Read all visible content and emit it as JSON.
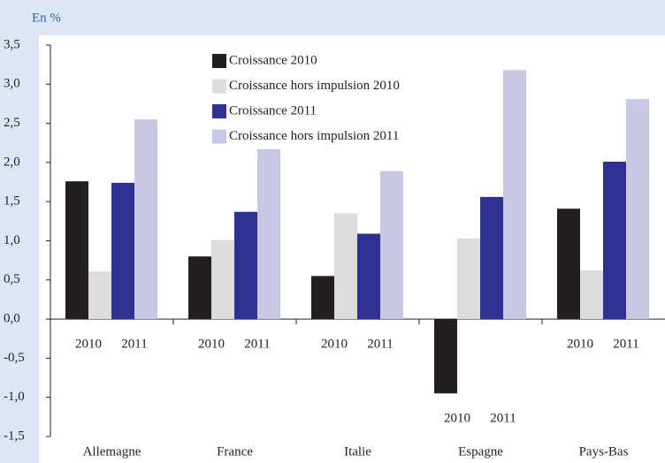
{
  "chart_data": {
    "type": "bar",
    "title": "En %",
    "categories": [
      "Allemagne",
      "France",
      "Italie",
      "Espagne",
      "Pays-Bas"
    ],
    "sub_categories": [
      "2010",
      "2011"
    ],
    "series": [
      {
        "name": "Croissance 2010",
        "color": "#231f20",
        "values": [
          1.76,
          0.8,
          0.55,
          -0.95,
          1.41
        ]
      },
      {
        "name": "Croissance hors impulsion 2010",
        "color": "#dcdcdc",
        "values": [
          0.61,
          1.01,
          1.35,
          1.03,
          0.62
        ]
      },
      {
        "name": "Croissance 2011",
        "color": "#2e3192",
        "values": [
          1.74,
          1.37,
          1.09,
          1.56,
          2.01
        ]
      },
      {
        "name": "Croissance hors impulsion 2011",
        "color": "#c9c8e4",
        "values": [
          2.55,
          2.17,
          1.89,
          3.18,
          2.81
        ]
      }
    ],
    "ylim": [
      -1.5,
      3.5
    ],
    "yticks": [
      {
        "value": -1.5,
        "label": "-1,5"
      },
      {
        "value": -1.0,
        "label": "-1,0"
      },
      {
        "value": -0.5,
        "label": "-0,5"
      },
      {
        "value": 0,
        "label": "0,0"
      },
      {
        "value": 0.5,
        "label": "0,5"
      },
      {
        "value": 1.0,
        "label": "1,0"
      },
      {
        "value": 1.5,
        "label": "1,5"
      },
      {
        "value": 2.0,
        "label": "2,0"
      },
      {
        "value": 2.5,
        "label": "2,5"
      },
      {
        "value": 3.0,
        "label": "3,0"
      },
      {
        "value": 3.5,
        "label": "3,5"
      }
    ],
    "grid": false,
    "legend": "top"
  }
}
